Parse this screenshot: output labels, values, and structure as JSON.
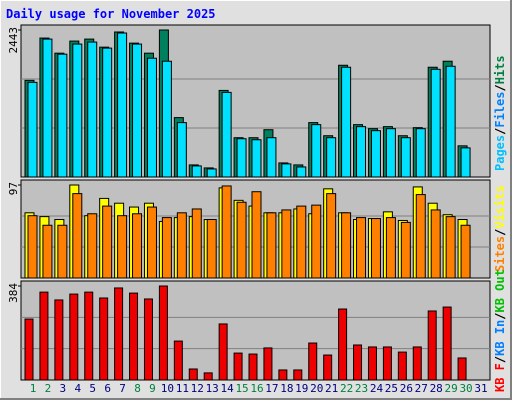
{
  "chart_data": [
    {
      "type": "bar",
      "title": "Daily usage for November 2025",
      "ylim": [
        0,
        2443
      ],
      "yticks": [
        2443
      ],
      "legend": [
        {
          "label": "Pages",
          "color": "#00c0ff"
        },
        {
          "label": "Files",
          "color": "#0080ff"
        },
        {
          "label": "Hits",
          "color": "#008040"
        }
      ],
      "separator": "/",
      "series": [
        {
          "color": "#00805c",
          "values": [
            1606,
            2309,
            2058,
            2259,
            2292,
            2158,
            2410,
            2225,
            2058,
            2443,
            987,
            201,
            151,
            1439,
            653,
            653,
            786,
            234,
            201,
            904,
            686,
            1857,
            870,
            803,
            837,
            686,
            820,
            1824,
            1924,
            518,
            0
          ]
        },
        {
          "color": "#00e0ff",
          "values": [
            1573,
            2292,
            2041,
            2209,
            2242,
            2142,
            2393,
            2209,
            1974,
            1924,
            904,
            184,
            134,
            1406,
            636,
            619,
            653,
            218,
            167,
            870,
            653,
            1824,
            837,
            770,
            803,
            653,
            803,
            1790,
            1840,
            484,
            0
          ]
        }
      ]
    },
    {
      "type": "bar",
      "ylim": [
        0,
        97
      ],
      "yticks": [
        97
      ],
      "legend": [
        {
          "label": "Sites",
          "color": "#ff8000"
        },
        {
          "label": "Visits",
          "color": "#ffff00"
        }
      ],
      "separator": "/",
      "series": [
        {
          "color": "#ffff00",
          "values": [
            68,
            64,
            61,
            97,
            65,
            83,
            78,
            74,
            78,
            59,
            63,
            64,
            61,
            94,
            81,
            75,
            68,
            68,
            72,
            67,
            93,
            68,
            61,
            62,
            69,
            60,
            95,
            78,
            66,
            61,
            0
          ]
        },
        {
          "color": "#ff8000",
          "values": [
            65,
            55,
            55,
            88,
            67,
            75,
            65,
            67,
            74,
            63,
            68,
            72,
            61,
            96,
            79,
            90,
            68,
            71,
            75,
            76,
            88,
            68,
            63,
            62,
            63,
            58,
            87,
            71,
            64,
            55,
            0
          ]
        }
      ]
    },
    {
      "type": "bar",
      "ylim": [
        0,
        384
      ],
      "yticks": [
        384
      ],
      "legend": [
        {
          "label": "KB F",
          "color": "#ff0000"
        },
        {
          "label": "KB In",
          "color": "#0080ff"
        },
        {
          "label": "KB Out",
          "color": "#00c000"
        }
      ],
      "separator": "/",
      "categories": [
        "1",
        "2",
        "3",
        "4",
        "5",
        "6",
        "7",
        "8",
        "9",
        "10",
        "11",
        "12",
        "13",
        "14",
        "15",
        "16",
        "17",
        "18",
        "19",
        "20",
        "21",
        "22",
        "23",
        "24",
        "25",
        "26",
        "27",
        "28",
        "29",
        "30",
        "31"
      ],
      "category_colors": [
        "#008040",
        "#008040",
        "#000080",
        "#000080",
        "#000080",
        "#000080",
        "#000080",
        "#008040",
        "#008040",
        "#000080",
        "#000080",
        "#000080",
        "#000080",
        "#000080",
        "#008040",
        "#008040",
        "#000080",
        "#000080",
        "#000080",
        "#000080",
        "#000080",
        "#008040",
        "#008040",
        "#000080",
        "#000080",
        "#000080",
        "#000080",
        "#000080",
        "#008040",
        "#008040",
        "#000080"
      ],
      "series": [
        {
          "color": "#ee0000",
          "values": [
            249,
            359,
            327,
            351,
            359,
            335,
            376,
            355,
            331,
            384,
            159,
            45,
            29,
            229,
            110,
            106,
            131,
            41,
            41,
            151,
            102,
            290,
            143,
            135,
            135,
            114,
            135,
            282,
            298,
            90,
            0
          ]
        }
      ]
    }
  ]
}
